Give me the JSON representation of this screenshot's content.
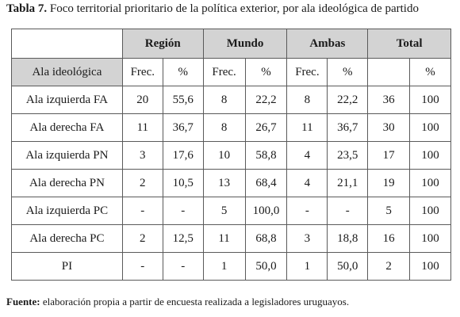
{
  "title": {
    "label": "Tabla 7.",
    "text": "Foco territorial prioritario de la política exterior, por ala ideológica de partido"
  },
  "table": {
    "groups": [
      "Región",
      "Mundo",
      "Ambas",
      "Total"
    ],
    "row_header": "Ala ideológica",
    "subheaders": [
      "Frec.",
      "%",
      "Frec.",
      "%",
      "Frec.",
      "%",
      "",
      "%"
    ],
    "rows": [
      {
        "label": "Ala izquierda FA",
        "cells": [
          "20",
          "55,6",
          "8",
          "22,2",
          "8",
          "22,2",
          "36",
          "100"
        ]
      },
      {
        "label": "Ala derecha FA",
        "cells": [
          "11",
          "36,7",
          "8",
          "26,7",
          "11",
          "36,7",
          "30",
          "100"
        ]
      },
      {
        "label": "Ala izquierda PN",
        "cells": [
          "3",
          "17,6",
          "10",
          "58,8",
          "4",
          "23,5",
          "17",
          "100"
        ]
      },
      {
        "label": "Ala derecha PN",
        "cells": [
          "2",
          "10,5",
          "13",
          "68,4",
          "4",
          "21,1",
          "19",
          "100"
        ]
      },
      {
        "label": "Ala izquierda PC",
        "cells": [
          "-",
          "-",
          "5",
          "100,0",
          "-",
          "-",
          "5",
          "100"
        ]
      },
      {
        "label": "Ala derecha PC",
        "cells": [
          "2",
          "12,5",
          "11",
          "68,8",
          "3",
          "18,8",
          "16",
          "100"
        ]
      },
      {
        "label": "PI",
        "cells": [
          "-",
          "-",
          "1",
          "50,0",
          "1",
          "50,0",
          "2",
          "100"
        ]
      }
    ]
  },
  "footer": {
    "label": "Fuente:",
    "text": "elaboración propia a partir de encuesta realizada a legisladores uruguayos."
  }
}
